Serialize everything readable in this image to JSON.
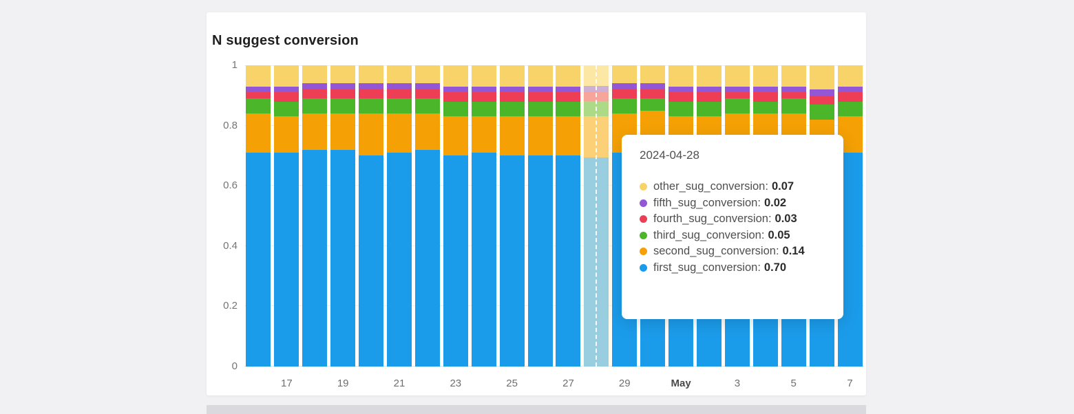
{
  "page": {
    "background": "#f1f1f3",
    "card_background": "#ffffff"
  },
  "chart_data": {
    "type": "bar",
    "stacked": true,
    "title": "N suggest conversion",
    "xlabel": "",
    "ylabel": "",
    "ylim": [
      0,
      1
    ],
    "yticks": [
      0,
      0.2,
      0.4,
      0.6,
      0.8,
      1
    ],
    "grid": true,
    "legend": "none",
    "x": [
      "2024-04-16",
      "2024-04-17",
      "2024-04-18",
      "2024-04-19",
      "2024-04-20",
      "2024-04-21",
      "2024-04-22",
      "2024-04-23",
      "2024-04-24",
      "2024-04-25",
      "2024-04-26",
      "2024-04-27",
      "2024-04-28",
      "2024-04-29",
      "2024-04-30",
      "2024-05-01",
      "2024-05-02",
      "2024-05-03",
      "2024-05-04",
      "2024-05-05",
      "2024-05-06",
      "2024-05-07"
    ],
    "x_ticks": [
      {
        "index": 1,
        "label": "17"
      },
      {
        "index": 3,
        "label": "19"
      },
      {
        "index": 5,
        "label": "21"
      },
      {
        "index": 7,
        "label": "23"
      },
      {
        "index": 9,
        "label": "25"
      },
      {
        "index": 11,
        "label": "27"
      },
      {
        "index": 13,
        "label": "29"
      },
      {
        "index": 15,
        "label": "May",
        "bold": true
      },
      {
        "index": 17,
        "label": "3"
      },
      {
        "index": 19,
        "label": "5"
      },
      {
        "index": 21,
        "label": "7"
      }
    ],
    "hover_index": 12,
    "series": [
      {
        "name": "first_sug_conversion",
        "color": "#1b9ceb",
        "values": [
          0.71,
          0.71,
          0.72,
          0.72,
          0.7,
          0.71,
          0.72,
          0.7,
          0.71,
          0.7,
          0.7,
          0.7,
          0.7,
          0.71,
          0.72,
          0.71,
          0.71,
          0.72,
          0.71,
          0.7,
          0.71,
          0.71
        ]
      },
      {
        "name": "second_sug_conversion",
        "color": "#f5a105",
        "values": [
          0.13,
          0.12,
          0.12,
          0.12,
          0.14,
          0.13,
          0.12,
          0.13,
          0.12,
          0.13,
          0.13,
          0.13,
          0.14,
          0.13,
          0.13,
          0.12,
          0.12,
          0.12,
          0.13,
          0.14,
          0.11,
          0.12
        ]
      },
      {
        "name": "third_sug_conversion",
        "color": "#4bb629",
        "values": [
          0.05,
          0.05,
          0.05,
          0.05,
          0.05,
          0.05,
          0.05,
          0.05,
          0.05,
          0.05,
          0.05,
          0.05,
          0.05,
          0.05,
          0.04,
          0.05,
          0.05,
          0.05,
          0.04,
          0.05,
          0.05,
          0.05
        ]
      },
      {
        "name": "fourth_sug_conversion",
        "color": "#ee3e56",
        "values": [
          0.02,
          0.03,
          0.03,
          0.03,
          0.03,
          0.03,
          0.03,
          0.03,
          0.03,
          0.03,
          0.03,
          0.03,
          0.03,
          0.03,
          0.03,
          0.03,
          0.03,
          0.02,
          0.03,
          0.02,
          0.03,
          0.03
        ]
      },
      {
        "name": "fifth_sug_conversion",
        "color": "#9357d6",
        "values": [
          0.02,
          0.02,
          0.02,
          0.02,
          0.02,
          0.02,
          0.02,
          0.02,
          0.02,
          0.02,
          0.02,
          0.02,
          0.02,
          0.02,
          0.02,
          0.02,
          0.02,
          0.02,
          0.02,
          0.02,
          0.02,
          0.02
        ]
      },
      {
        "name": "other_sug_conversion",
        "color": "#f8d36a",
        "values": [
          0.07,
          0.07,
          0.06,
          0.06,
          0.06,
          0.06,
          0.06,
          0.07,
          0.07,
          0.07,
          0.07,
          0.07,
          0.07,
          0.06,
          0.06,
          0.07,
          0.07,
          0.07,
          0.07,
          0.07,
          0.08,
          0.07
        ]
      }
    ]
  },
  "tooltip": {
    "title": "2024-04-28",
    "rows": [
      {
        "label": "other_sug_conversion",
        "value": "0.07",
        "color": "#f8d36a"
      },
      {
        "label": "fifth_sug_conversion",
        "value": "0.02",
        "color": "#9357d6"
      },
      {
        "label": "fourth_sug_conversion",
        "value": "0.03",
        "color": "#ee3e56"
      },
      {
        "label": "third_sug_conversion",
        "value": "0.05",
        "color": "#4bb629"
      },
      {
        "label": "second_sug_conversion",
        "value": "0.14",
        "color": "#f5a105"
      },
      {
        "label": "first_sug_conversion",
        "value": "0.70",
        "color": "#1b9ceb"
      }
    ]
  }
}
